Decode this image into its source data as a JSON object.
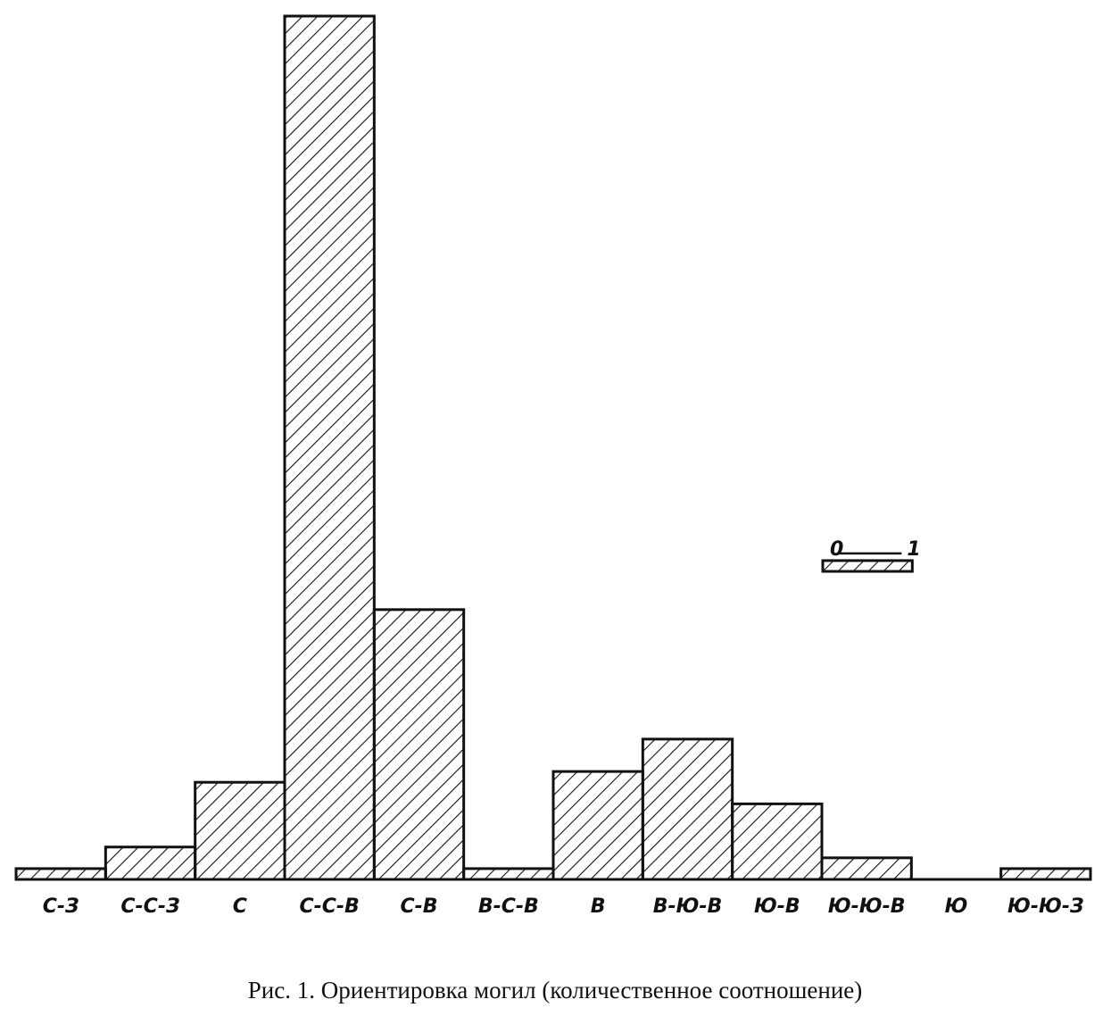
{
  "chart_data": {
    "type": "bar",
    "caption": "Рис. 1. Ориентировка могил (количественное соотношение)",
    "categories": [
      "С-З",
      "С-С-З",
      "С",
      "С-С-В",
      "С-В",
      "В-С-В",
      "В",
      "В-Ю-В",
      "Ю-В",
      "Ю-Ю-В",
      "Ю",
      "Ю-Ю-З"
    ],
    "values": [
      1,
      3,
      9,
      80,
      25,
      1,
      10,
      13,
      7,
      2,
      0,
      1
    ],
    "color": "#111111",
    "ylim": [
      0,
      80
    ],
    "scale_bar": {
      "start": 0,
      "end": 1
    }
  }
}
